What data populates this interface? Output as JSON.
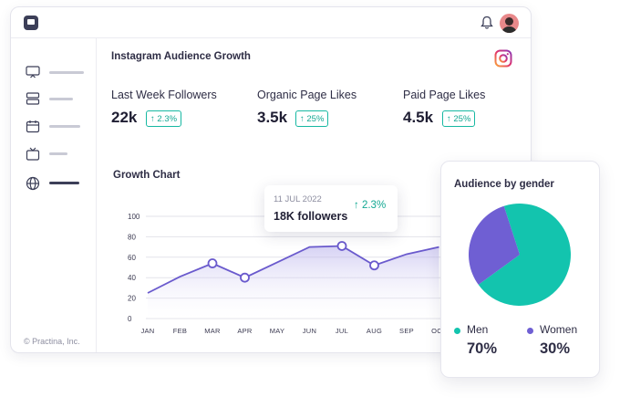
{
  "header": {
    "logo_icon": "chat-logo-icon",
    "bell_icon": "bell-icon",
    "avatar_icon": "user-avatar"
  },
  "sidebar": {
    "items": [
      {
        "icon": "monitor-icon"
      },
      {
        "icon": "layers-icon"
      },
      {
        "icon": "calendar-icon"
      },
      {
        "icon": "tv-icon"
      },
      {
        "icon": "globe-icon",
        "active": true
      }
    ],
    "copyright": "© Practina, Inc."
  },
  "main": {
    "title": "Instagram Audience Growth",
    "platform_icon": "instagram-icon",
    "metrics": [
      {
        "label": "Last Week Followers",
        "value": "22k",
        "change": "2.3%"
      },
      {
        "label": "Organic Page Likes",
        "value": "3.5k",
        "change": "25%"
      },
      {
        "label": "Paid Page Likes",
        "value": "4.5k",
        "change": "25%"
      }
    ]
  },
  "growth_chart": {
    "title": "Growth Chart",
    "tooltip": {
      "date": "11 JUL 2022",
      "value": "18K followers",
      "change": "2.3%"
    }
  },
  "gender": {
    "title": "Audience by gender",
    "men_label": "Men",
    "men_value": "70%",
    "women_label": "Women",
    "women_value": "30%"
  },
  "colors": {
    "accent": "#6a5acd",
    "teal": "#13c4ae",
    "purple": "#6f5fd3",
    "badge": "#13a893"
  },
  "chart_data": [
    {
      "type": "area",
      "title": "Growth Chart",
      "categories": [
        "JAN",
        "FEB",
        "MAR",
        "APR",
        "MAY",
        "JUN",
        "JUL",
        "AUG",
        "SEP",
        "OCT"
      ],
      "values": [
        25,
        41,
        54,
        40,
        55,
        70,
        71,
        52,
        63,
        70
      ],
      "ylim": [
        0,
        100
      ],
      "yticks": [
        0,
        20,
        40,
        60,
        80,
        100
      ],
      "grid": true
    },
    {
      "type": "pie",
      "title": "Audience by gender",
      "categories": [
        "Men",
        "Women"
      ],
      "values": [
        70,
        30
      ],
      "colors": [
        "#13c4ae",
        "#6f5fd3"
      ]
    }
  ]
}
